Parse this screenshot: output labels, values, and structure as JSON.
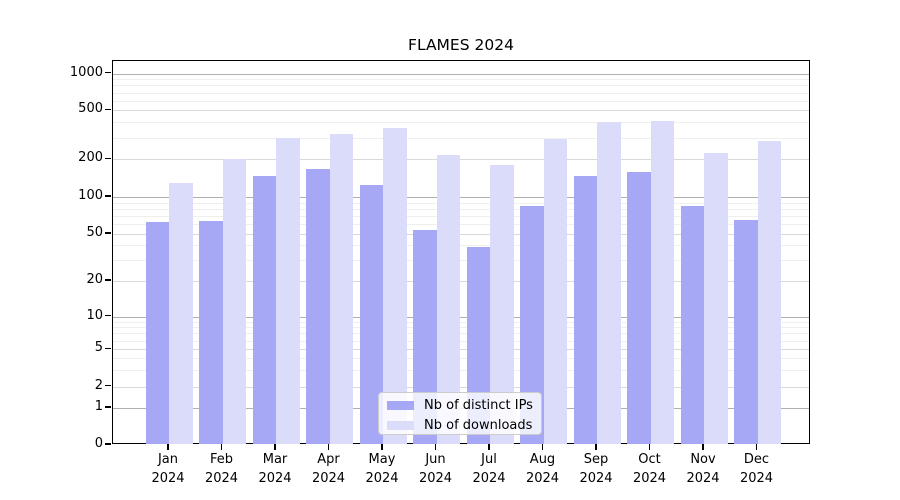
{
  "figure": {
    "title": "FLAMES 2024"
  },
  "chart_data": {
    "type": "bar",
    "title": "FLAMES 2024",
    "categories": [
      "Jan",
      "Feb",
      "Mar",
      "Apr",
      "May",
      "Jun",
      "Jul",
      "Aug",
      "Sep",
      "Oct",
      "Nov",
      "Dec"
    ],
    "year_label": "2024",
    "series": [
      {
        "name": "Nb of distinct IPs",
        "color": "#a7a8f5",
        "values": [
          63,
          64,
          147,
          167,
          125,
          54,
          39,
          84,
          147,
          158,
          85,
          65
        ]
      },
      {
        "name": "Nb of downloads",
        "color": "#dadcf9",
        "values": [
          130,
          200,
          300,
          320,
          360,
          215,
          180,
          290,
          400,
          410,
          225,
          280
        ]
      }
    ],
    "xlabel": "",
    "ylabel": "",
    "yscale": "symlog",
    "yticks": [
      0,
      1,
      2,
      5,
      10,
      20,
      50,
      100,
      200,
      500,
      1000
    ],
    "ylim": [
      0,
      1200
    ],
    "grid": "horizontal, major and minor",
    "legend_position": "lower center"
  }
}
